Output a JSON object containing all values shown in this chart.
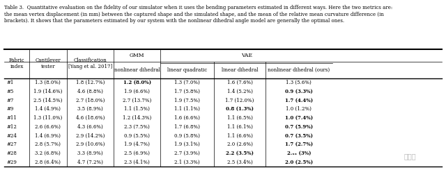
{
  "title": "Table 3.  Quantitative evaluation on the fidelity of our simulator when it uses the bending parameters estimated in different ways. Here the two metrics are:\nthe mean vertex displacement (in mm) between the captured shape and the simulated shape, and the mean of the relative mean curvature difference (in\nbrackets). It shows that the parameters estimated by our system with the nonlinear dihedral angle model are generally the optimal ones.",
  "col_headers": [
    "Fabric\nindex",
    "Cantilever\ntester",
    "Classification\n[Yang et al. 2017]",
    "GMM\nnonlinear dihedral",
    "VAE\nlinear quadratic",
    "VAE\nlinear dihedral",
    "VAE\nnonlinear dihedral (ours)"
  ],
  "col_header_merged": [
    "",
    "",
    "",
    "GMM",
    "VAE",
    "",
    ""
  ],
  "rows": [
    [
      "#1",
      "1.3 (8.0%)",
      "1.8 (12.7%)",
      "1.2 (8.0%)",
      "1.3 (7.0%)",
      "1.6 (7.6%)",
      "1.3 (5.6%)"
    ],
    [
      "#5",
      "1.9 (14.6%)",
      "4.6 (8.8%)",
      "1.9 (6.6%)",
      "1.7 (5.8%)",
      "1.4 (5.2%)",
      "0.9 (3.3%)"
    ],
    [
      "#7",
      "2.5 (14.5%)",
      "2.7 (18.0%)",
      "2.7 (13.7%)",
      "1.9 (7.5%)",
      "1.7 (12.0%)",
      "1.7 (4.4%)"
    ],
    [
      "#9",
      "1.4 (4.9%)",
      "3.5 (8.9%)",
      "1.1 (1.5%)",
      "1.1 (1.1%)",
      "0.8 (1.3%)",
      "1.0 (1.2%)"
    ],
    [
      "#11",
      "1.3 (11.0%)",
      "4.6 (18.6%)",
      "1.2 (14.3%)",
      "1.6 (6.6%)",
      "1.1 (6.5%)",
      "1.0 (7.4%)"
    ],
    [
      "#12",
      "2.6 (6.6%)",
      "4.3 (6.6%)",
      "2.3 (7.5%)",
      "1.7 (6.8%)",
      "1.1 (6.1%)",
      "0.7 (5.9%)"
    ],
    [
      "#24",
      "1.4 (6.9%)",
      "2.9 (14.2%)",
      "0.9 (5.5%)",
      "0.9 (5.8%)",
      "1.1 (6.6%)",
      "0.7 (3.5%)"
    ],
    [
      "#27",
      "2.8 (5.7%)",
      "2.9 (10.6%)",
      "1.9 (4.7%)",
      "1.9 (3.1%)",
      "2.0 (2.6%)",
      "1.7 (2.7%)"
    ],
    [
      "#28",
      "3.2 (6.8%)",
      "3.3 (8.9%)",
      "2.5 (6.9%)",
      "2.7 (3.9%)",
      "2.2 (3.5%)",
      "2.ₓₓ (3%)"
    ],
    [
      "#29",
      "2.8 (6.4%)",
      "4.7 (7.2%)",
      "2.3 (4.1%)",
      "2.1 (3.3%)",
      "2.5 (3.4%)",
      "2.0 (2.5%)"
    ]
  ],
  "bold_cells": {
    "0": [
      3
    ],
    "1": [
      6
    ],
    "2": [
      6
    ],
    "3": [
      5
    ],
    "4": [
      6
    ],
    "5": [
      6
    ],
    "6": [
      6
    ],
    "7": [
      6
    ],
    "8": [
      5,
      6
    ],
    "9": [
      6
    ]
  },
  "bold_pct_cells": {
    "0": [
      6
    ],
    "1": [
      6
    ],
    "2": [
      6
    ],
    "3": [
      4,
      5
    ],
    "4": [
      5,
      6
    ],
    "5": [
      6
    ],
    "6": [
      6
    ],
    "7": [
      5,
      6
    ],
    "8": [
      5,
      6
    ],
    "9": [
      6
    ]
  },
  "bg_color": "#ffffff",
  "text_color": "#000000",
  "watermark": "量子位"
}
